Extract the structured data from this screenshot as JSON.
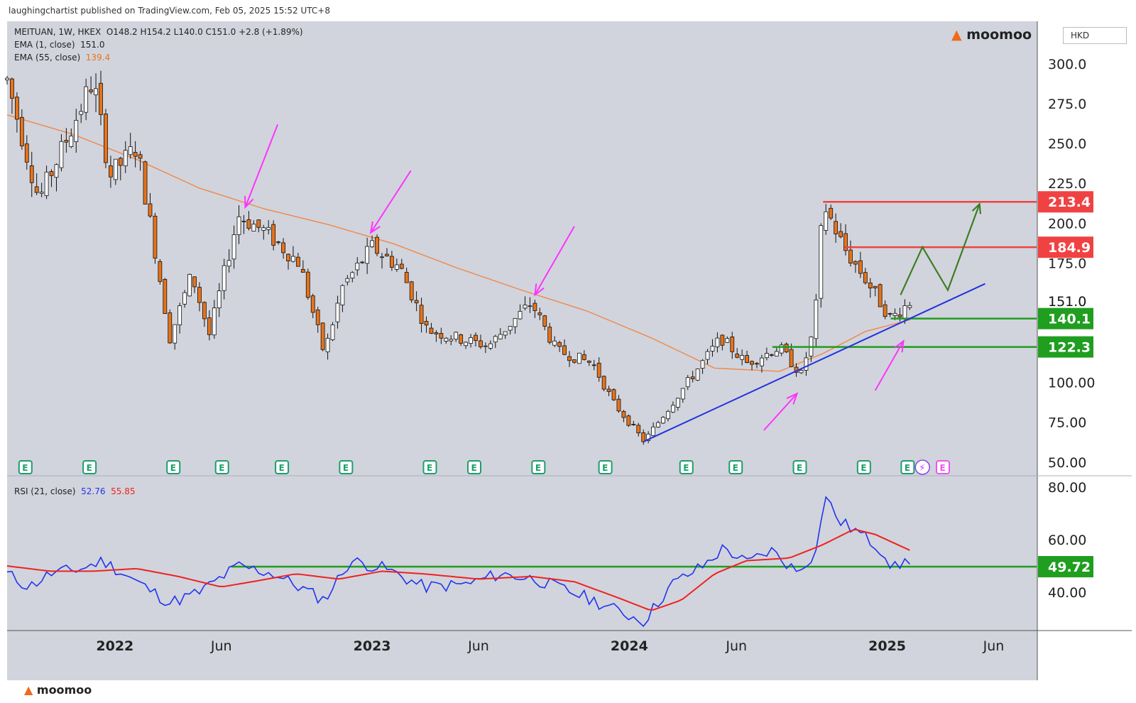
{
  "publisher": "laughingchartist published on TradingView.com, Feb 05, 2025 15:52 UTC+8",
  "brand": "moomoo",
  "currency": "HKD",
  "colors": {
    "up": "#ffffff",
    "down": "#e8731a",
    "ema55": "#f0884a",
    "trendline": "#2233dd",
    "arrow": "#ff33ff",
    "path": "#3d7d22",
    "resist": "#f04242",
    "support": "#1f9e1f",
    "rsi": "#2233ee",
    "rsi_ma": "#ee2222",
    "earnings": "#1e9e6e"
  },
  "legend": {
    "symbol": "MEITUAN, 1W, HKEX",
    "ohlc": "O148.2 H154.2 L140.0 C151.0 +2.8 (+1.89%)",
    "ema1_label": "EMA (1, close)",
    "ema1_value": "151.0",
    "ema55_label": "EMA (55, close)",
    "ema55_value": "139.4",
    "rsi_label": "RSI (21, close)",
    "rsi_value": "52.76",
    "rsi_ma_value": "55.85"
  },
  "chart_data": [
    {
      "type": "candlestick",
      "price_axis": {
        "ticks": [
          "300.0",
          "275.0",
          "250.0",
          "225.0",
          "200.0",
          "175.0",
          "100.00",
          "75.00",
          "50.00"
        ],
        "tick_values": [
          300,
          275,
          250,
          225,
          200,
          175,
          100,
          75,
          50
        ]
      },
      "time_axis": {
        "labels": [
          "2022",
          "Jun",
          "2023",
          "Jun",
          "2024",
          "Jun",
          "2025",
          "Jun"
        ],
        "dates": [
          "2022-01-01",
          "2022-06-01",
          "2023-01-01",
          "2023-06-01",
          "2024-01-01",
          "2024-06-01",
          "2025-01-01",
          "2025-06-01"
        ]
      },
      "range": {
        "start": "2021-08-01",
        "end": "2025-08-01"
      },
      "last_price": "151.0",
      "price_labels": [
        {
          "text": "213.4",
          "value": 213.4,
          "kind": "resistance"
        },
        {
          "text": "184.9",
          "value": 184.9,
          "kind": "resistance"
        },
        {
          "text": "151.0",
          "value": 151.0,
          "kind": "last"
        },
        {
          "text": "140.1",
          "value": 140.1,
          "kind": "support"
        },
        {
          "text": "122.3",
          "value": 122.3,
          "kind": "support"
        }
      ],
      "levels": [
        {
          "name": "resistance-213",
          "value": 213.4,
          "from": "2024-10-02",
          "to": "2025-08-01"
        },
        {
          "name": "resistance-185",
          "value": 184.9,
          "from": "2024-11-01",
          "to": "2025-08-01"
        },
        {
          "name": "support-140",
          "value": 140.1,
          "from": "2025-01-06",
          "to": "2025-08-01"
        },
        {
          "name": "support-122",
          "value": 122.3,
          "from": "2024-07-22",
          "to": "2025-08-01"
        }
      ],
      "trendline": {
        "from": {
          "date": "2024-01-22",
          "value": 63
        },
        "to": {
          "date": "2025-05-20",
          "value": 162
        }
      },
      "projection_path": [
        {
          "date": "2025-01-20",
          "value": 155
        },
        {
          "date": "2025-02-20",
          "value": 185
        },
        {
          "date": "2025-03-28",
          "value": 158
        },
        {
          "date": "2025-05-12",
          "value": 212
        }
      ],
      "arrows": [
        {
          "from": {
            "date": "2022-08-20",
            "value": 262
          },
          "to": {
            "date": "2022-07-05",
            "value": 210
          }
        },
        {
          "from": {
            "date": "2023-02-25",
            "value": 233
          },
          "to": {
            "date": "2022-12-30",
            "value": 194
          }
        },
        {
          "from": {
            "date": "2023-10-15",
            "value": 198
          },
          "to": {
            "date": "2023-08-20",
            "value": 155
          }
        },
        {
          "from": {
            "date": "2024-07-10",
            "value": 70
          },
          "to": {
            "date": "2024-08-26",
            "value": 93
          }
        },
        {
          "from": {
            "date": "2024-12-15",
            "value": 95
          },
          "to": {
            "date": "2025-01-24",
            "value": 126
          }
        }
      ],
      "ema55": [
        {
          "date": "2021-08-01",
          "value": 268
        },
        {
          "date": "2021-11-01",
          "value": 256
        },
        {
          "date": "2022-02-01",
          "value": 240
        },
        {
          "date": "2022-05-01",
          "value": 222
        },
        {
          "date": "2022-08-01",
          "value": 209
        },
        {
          "date": "2022-11-01",
          "value": 199
        },
        {
          "date": "2023-02-01",
          "value": 187
        },
        {
          "date": "2023-05-01",
          "value": 172
        },
        {
          "date": "2023-08-01",
          "value": 158
        },
        {
          "date": "2023-11-01",
          "value": 145
        },
        {
          "date": "2024-02-01",
          "value": 128
        },
        {
          "date": "2024-05-01",
          "value": 109
        },
        {
          "date": "2024-08-01",
          "value": 107
        },
        {
          "date": "2024-10-01",
          "value": 118
        },
        {
          "date": "2024-12-01",
          "value": 132
        },
        {
          "date": "2025-02-03",
          "value": 139.4
        }
      ],
      "price_close": [
        {
          "date": "2021-08-01",
          "value": 290
        },
        {
          "date": "2021-09-15",
          "value": 215
        },
        {
          "date": "2021-11-01",
          "value": 260
        },
        {
          "date": "2021-12-01",
          "value": 290
        },
        {
          "date": "2021-12-25",
          "value": 230
        },
        {
          "date": "2022-02-01",
          "value": 248
        },
        {
          "date": "2022-03-01",
          "value": 178
        },
        {
          "date": "2022-03-20",
          "value": 128
        },
        {
          "date": "2022-04-20",
          "value": 168
        },
        {
          "date": "2022-05-15",
          "value": 130
        },
        {
          "date": "2022-06-25",
          "value": 205
        },
        {
          "date": "2022-08-01",
          "value": 195
        },
        {
          "date": "2022-09-20",
          "value": 175
        },
        {
          "date": "2022-10-25",
          "value": 118
        },
        {
          "date": "2022-11-20",
          "value": 160
        },
        {
          "date": "2023-01-01",
          "value": 185
        },
        {
          "date": "2023-02-10",
          "value": 172
        },
        {
          "date": "2023-03-20",
          "value": 133
        },
        {
          "date": "2023-05-01",
          "value": 128
        },
        {
          "date": "2023-06-15",
          "value": 123
        },
        {
          "date": "2023-08-15",
          "value": 150
        },
        {
          "date": "2023-09-20",
          "value": 120
        },
        {
          "date": "2023-11-10",
          "value": 112
        },
        {
          "date": "2023-12-10",
          "value": 87
        },
        {
          "date": "2024-01-22",
          "value": 63
        },
        {
          "date": "2024-03-20",
          "value": 98
        },
        {
          "date": "2024-05-10",
          "value": 128
        },
        {
          "date": "2024-06-15",
          "value": 112
        },
        {
          "date": "2024-08-01",
          "value": 122
        },
        {
          "date": "2024-09-01",
          "value": 105
        },
        {
          "date": "2024-09-20",
          "value": 135
        },
        {
          "date": "2024-10-02",
          "value": 213
        },
        {
          "date": "2024-11-01",
          "value": 184
        },
        {
          "date": "2024-12-01",
          "value": 165
        },
        {
          "date": "2025-01-06",
          "value": 140
        },
        {
          "date": "2025-02-03",
          "value": 151
        }
      ],
      "earnings_markers": [
        "E",
        "E",
        "E",
        "E",
        "E",
        "E",
        "E",
        "E",
        "E",
        "E",
        "E",
        "E",
        "E",
        "E",
        "E",
        "E",
        "E"
      ],
      "earnings_dates": [
        "2021-08-27",
        "2021-11-26",
        "2022-03-25",
        "2022-06-02",
        "2022-08-26",
        "2022-11-25",
        "2023-03-24",
        "2023-05-26",
        "2023-08-25",
        "2023-11-28",
        "2024-03-22",
        "2024-05-31",
        "2024-08-30",
        "2024-11-29",
        "2025-01-30",
        "2025-02-20",
        "2025-03-21"
      ]
    },
    {
      "type": "line",
      "title": "RSI (21, close)",
      "y_axis": {
        "ticks": [
          "80.00",
          "60.00",
          "40.00"
        ],
        "tick_values": [
          80,
          60,
          40
        ]
      },
      "level": {
        "text": "49.72",
        "value": 49.72
      },
      "series": [
        {
          "name": "RSI",
          "points": [
            {
              "date": "2021-08-01",
              "value": 47
            },
            {
              "date": "2021-09-01",
              "value": 42
            },
            {
              "date": "2021-10-01",
              "value": 47
            },
            {
              "date": "2021-11-15",
              "value": 49
            },
            {
              "date": "2021-12-15",
              "value": 52
            },
            {
              "date": "2022-02-01",
              "value": 44
            },
            {
              "date": "2022-03-20",
              "value": 36
            },
            {
              "date": "2022-05-01",
              "value": 40
            },
            {
              "date": "2022-06-25",
              "value": 50
            },
            {
              "date": "2022-08-15",
              "value": 47
            },
            {
              "date": "2022-10-25",
              "value": 37
            },
            {
              "date": "2022-12-01",
              "value": 52
            },
            {
              "date": "2023-01-20",
              "value": 49
            },
            {
              "date": "2023-03-15",
              "value": 42
            },
            {
              "date": "2023-05-15",
              "value": 43
            },
            {
              "date": "2023-07-01",
              "value": 47
            },
            {
              "date": "2023-08-20",
              "value": 45
            },
            {
              "date": "2023-11-01",
              "value": 38
            },
            {
              "date": "2023-12-15",
              "value": 33
            },
            {
              "date": "2024-01-22",
              "value": 29
            },
            {
              "date": "2024-03-01",
              "value": 43
            },
            {
              "date": "2024-04-15",
              "value": 50
            },
            {
              "date": "2024-05-15",
              "value": 57
            },
            {
              "date": "2024-06-15",
              "value": 51
            },
            {
              "date": "2024-07-20",
              "value": 56
            },
            {
              "date": "2024-08-25",
              "value": 48
            },
            {
              "date": "2024-09-25",
              "value": 56
            },
            {
              "date": "2024-10-02",
              "value": 78
            },
            {
              "date": "2024-10-25",
              "value": 67
            },
            {
              "date": "2024-11-20",
              "value": 63
            },
            {
              "date": "2024-12-25",
              "value": 56
            },
            {
              "date": "2025-01-10",
              "value": 49
            },
            {
              "date": "2025-02-03",
              "value": 52.76
            }
          ]
        },
        {
          "name": "RSI MA",
          "points": [
            {
              "date": "2021-08-01",
              "value": 50
            },
            {
              "date": "2021-10-01",
              "value": 48
            },
            {
              "date": "2021-12-01",
              "value": 48
            },
            {
              "date": "2022-02-01",
              "value": 49
            },
            {
              "date": "2022-04-01",
              "value": 46
            },
            {
              "date": "2022-06-01",
              "value": 42
            },
            {
              "date": "2022-07-15",
              "value": 44
            },
            {
              "date": "2022-09-15",
              "value": 47
            },
            {
              "date": "2022-11-15",
              "value": 45
            },
            {
              "date": "2023-01-15",
              "value": 48
            },
            {
              "date": "2023-03-15",
              "value": 47
            },
            {
              "date": "2023-06-01",
              "value": 45
            },
            {
              "date": "2023-08-15",
              "value": 46
            },
            {
              "date": "2023-10-15",
              "value": 44
            },
            {
              "date": "2023-12-15",
              "value": 38
            },
            {
              "date": "2024-02-01",
              "value": 33
            },
            {
              "date": "2024-03-15",
              "value": 37
            },
            {
              "date": "2024-05-01",
              "value": 47
            },
            {
              "date": "2024-06-15",
              "value": 52
            },
            {
              "date": "2024-08-15",
              "value": 53
            },
            {
              "date": "2024-10-01",
              "value": 58
            },
            {
              "date": "2024-11-15",
              "value": 64
            },
            {
              "date": "2024-12-15",
              "value": 62
            },
            {
              "date": "2025-02-03",
              "value": 55.85
            }
          ]
        }
      ]
    }
  ]
}
